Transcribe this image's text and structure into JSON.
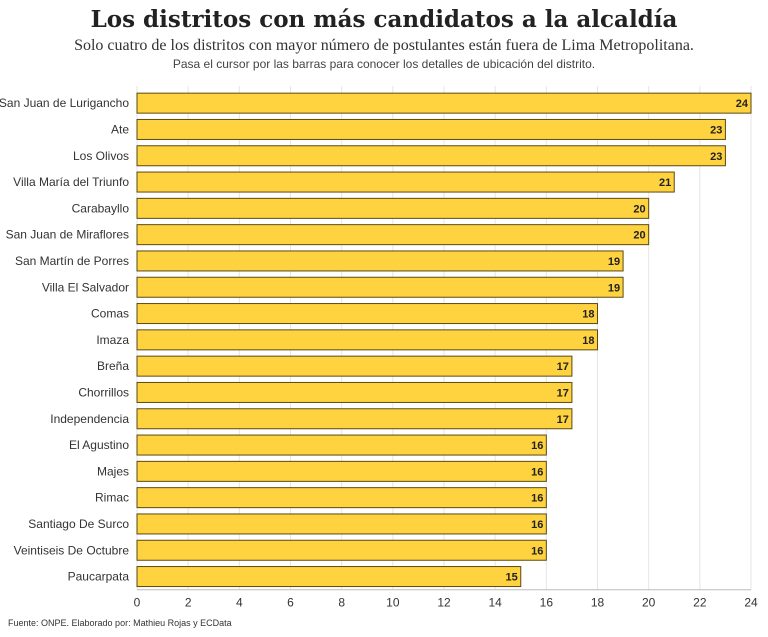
{
  "title": "Los distritos con más candidatos a la alcaldía",
  "subtitle": "Solo cuatro de los distritos con mayor número de postulantes están fuera de Lima Metropolitana.",
  "note": "Pasa el cursor por las barras para conocer los detalles de ubicación del distrito.",
  "source": "Fuente: ONPE. Elaborado por: Mathieu Rojas y ECData",
  "chart_data": {
    "type": "bar",
    "orientation": "horizontal",
    "title": "Los distritos con más candidatos a la alcaldía",
    "xlabel": "",
    "ylabel": "",
    "xlim": [
      0,
      24
    ],
    "xticks": [
      0,
      2,
      4,
      6,
      8,
      10,
      12,
      14,
      16,
      18,
      20,
      22,
      24
    ],
    "grid": true,
    "bar_color": "#FFD23F",
    "bar_stroke": "#5a4a10",
    "categories": [
      "San Juan de Lurigancho",
      "Ate",
      "Los Olivos",
      "Villa María del Triunfo",
      "Carabayllo",
      "San Juan de Miraflores",
      "San Martín de Porres",
      "Villa El Salvador",
      "Comas",
      "Imaza",
      "Breña",
      "Chorrillos",
      "Independencia",
      "El Agustino",
      "Majes",
      "Rimac",
      "Santiago De Surco",
      "Veintiseis De Octubre",
      "Paucarpata"
    ],
    "values": [
      24,
      23,
      23,
      21,
      20,
      20,
      19,
      19,
      18,
      18,
      17,
      17,
      17,
      16,
      16,
      16,
      16,
      16,
      15
    ]
  }
}
